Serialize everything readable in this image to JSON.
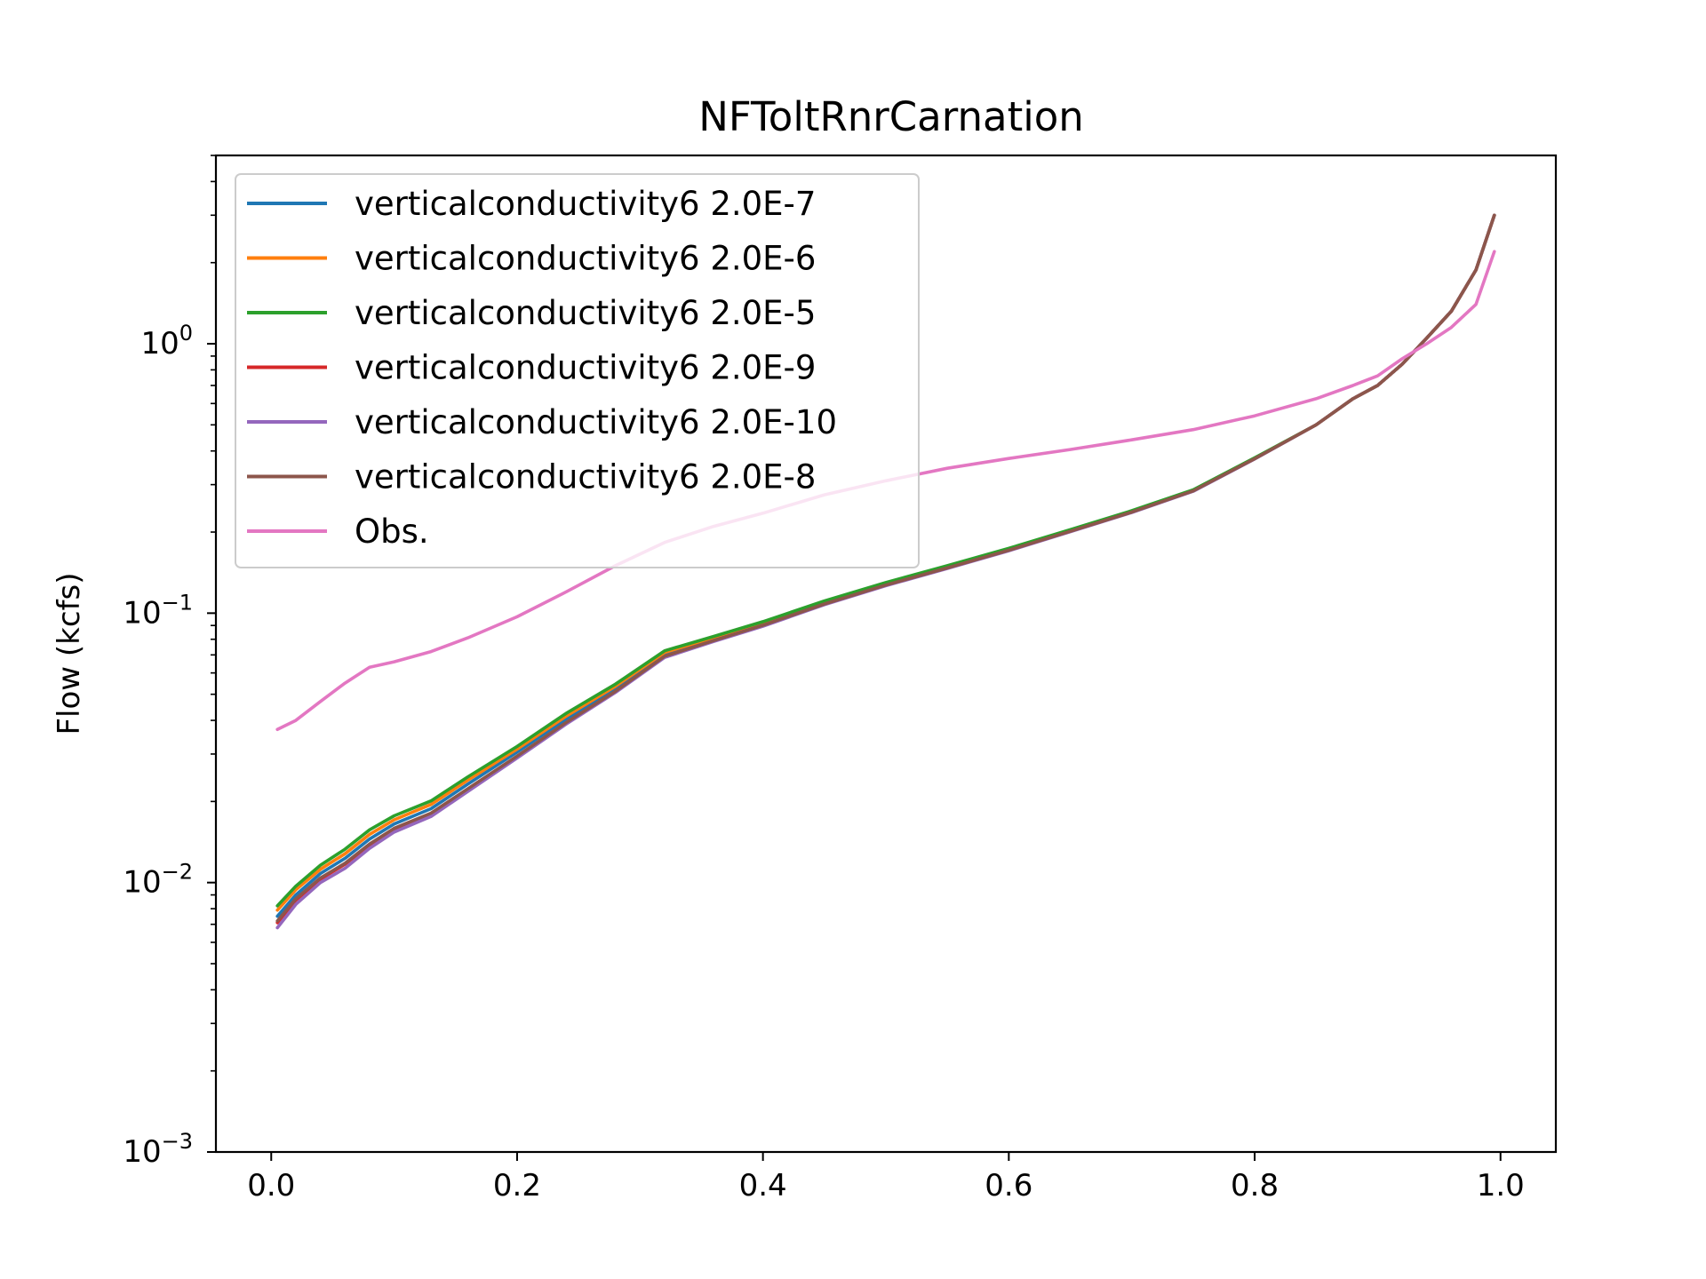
{
  "chart_data": {
    "type": "line",
    "title": "NFToltRnrCarnation",
    "xlabel": "",
    "ylabel": "Flow (kcfs)",
    "xlim": [
      -0.045,
      1.045
    ],
    "ylim": [
      0.001,
      5.0
    ],
    "yscale": "log",
    "grid": false,
    "legend_position": "top-left",
    "x_ticks": [
      0.0,
      0.2,
      0.4,
      0.6,
      0.8,
      1.0
    ],
    "x_tick_labels": [
      "0.0",
      "0.2",
      "0.4",
      "0.6",
      "0.8",
      "1.0"
    ],
    "y_ticks": [
      0.001,
      0.01,
      0.1,
      1.0
    ],
    "y_tick_labels": [
      {
        "base": "10",
        "exp": "−3"
      },
      {
        "base": "10",
        "exp": "−2"
      },
      {
        "base": "10",
        "exp": "−1"
      },
      {
        "base": "10",
        "exp": "0"
      }
    ],
    "series": [
      {
        "name": "verticalconductivity6 2.0E-7",
        "color": "#1f77b4",
        "x": [
          0.005,
          0.02,
          0.04,
          0.06,
          0.08,
          0.1,
          0.13,
          0.16,
          0.2,
          0.24,
          0.28,
          0.32,
          0.36,
          0.4,
          0.45,
          0.5,
          0.55,
          0.6,
          0.65,
          0.7,
          0.75,
          0.8,
          0.85,
          0.88,
          0.9,
          0.92,
          0.94,
          0.96,
          0.98,
          0.995
        ],
        "y": [
          0.0075,
          0.009,
          0.0108,
          0.0123,
          0.0145,
          0.0165,
          0.0188,
          0.0232,
          0.0305,
          0.0405,
          0.0525,
          0.0705,
          0.0805,
          0.0915,
          0.109,
          0.128,
          0.148,
          0.172,
          0.202,
          0.238,
          0.285,
          0.375,
          0.5,
          0.625,
          0.7,
          0.84,
          1.05,
          1.32,
          1.88,
          3.0
        ]
      },
      {
        "name": "verticalconductivity6 2.0E-6",
        "color": "#ff7f0e",
        "x": [
          0.005,
          0.02,
          0.04,
          0.06,
          0.08,
          0.1,
          0.13,
          0.16,
          0.2,
          0.24,
          0.28,
          0.32,
          0.36,
          0.4,
          0.45,
          0.5,
          0.55,
          0.6,
          0.65,
          0.7,
          0.75,
          0.8,
          0.85,
          0.88,
          0.9,
          0.92,
          0.94,
          0.96,
          0.98,
          0.995
        ],
        "y": [
          0.0079,
          0.0094,
          0.0112,
          0.0128,
          0.0151,
          0.0171,
          0.0195,
          0.024,
          0.0313,
          0.0415,
          0.0535,
          0.0715,
          0.0812,
          0.0922,
          0.11,
          0.129,
          0.149,
          0.173,
          0.203,
          0.239,
          0.286,
          0.376,
          0.5,
          0.625,
          0.7,
          0.84,
          1.05,
          1.32,
          1.88,
          3.0
        ]
      },
      {
        "name": "verticalconductivity6 2.0E-5",
        "color": "#2ca02c",
        "x": [
          0.005,
          0.02,
          0.04,
          0.06,
          0.08,
          0.1,
          0.13,
          0.16,
          0.2,
          0.24,
          0.28,
          0.32,
          0.36,
          0.4,
          0.45,
          0.5,
          0.55,
          0.6,
          0.65,
          0.7,
          0.75,
          0.8,
          0.85,
          0.88,
          0.9,
          0.92,
          0.94,
          0.96,
          0.98,
          0.995
        ],
        "y": [
          0.0082,
          0.0097,
          0.0116,
          0.0133,
          0.0157,
          0.0177,
          0.0201,
          0.0247,
          0.032,
          0.0425,
          0.0545,
          0.0725,
          0.082,
          0.093,
          0.111,
          0.13,
          0.15,
          0.174,
          0.204,
          0.24,
          0.287,
          0.377,
          0.5,
          0.625,
          0.7,
          0.84,
          1.05,
          1.32,
          1.88,
          3.0
        ]
      },
      {
        "name": "verticalconductivity6 2.0E-9",
        "color": "#d62728",
        "x": [
          0.005,
          0.02,
          0.04,
          0.06,
          0.08,
          0.1,
          0.13,
          0.16,
          0.2,
          0.24,
          0.28,
          0.32,
          0.36,
          0.4,
          0.45,
          0.5,
          0.55,
          0.6,
          0.65,
          0.7,
          0.75,
          0.8,
          0.85,
          0.88,
          0.9,
          0.92,
          0.94,
          0.96,
          0.98,
          0.995
        ],
        "y": [
          0.0071,
          0.0086,
          0.0103,
          0.0117,
          0.0138,
          0.0158,
          0.018,
          0.0222,
          0.0294,
          0.0392,
          0.0512,
          0.069,
          0.079,
          0.09,
          0.108,
          0.127,
          0.147,
          0.171,
          0.201,
          0.237,
          0.284,
          0.374,
          0.5,
          0.625,
          0.7,
          0.84,
          1.05,
          1.32,
          1.88,
          3.0
        ]
      },
      {
        "name": "verticalconductivity6 2.0E-10",
        "color": "#9467bd",
        "x": [
          0.005,
          0.02,
          0.04,
          0.06,
          0.08,
          0.1,
          0.13,
          0.16,
          0.2,
          0.24,
          0.28,
          0.32,
          0.36,
          0.4,
          0.45,
          0.5,
          0.55,
          0.6,
          0.65,
          0.7,
          0.75,
          0.8,
          0.85,
          0.88,
          0.9,
          0.92,
          0.94,
          0.96,
          0.98,
          0.995
        ],
        "y": [
          0.0068,
          0.0083,
          0.01,
          0.0113,
          0.0134,
          0.0154,
          0.0176,
          0.0218,
          0.029,
          0.0388,
          0.0508,
          0.0685,
          0.0785,
          0.0895,
          0.1075,
          0.1265,
          0.1465,
          0.1705,
          0.2005,
          0.2365,
          0.2835,
          0.3735,
          0.5,
          0.625,
          0.7,
          0.84,
          1.05,
          1.32,
          1.88,
          3.0
        ]
      },
      {
        "name": "verticalconductivity6 2.0E-8",
        "color": "#8c564b",
        "x": [
          0.005,
          0.02,
          0.04,
          0.06,
          0.08,
          0.1,
          0.13,
          0.16,
          0.2,
          0.24,
          0.28,
          0.32,
          0.36,
          0.4,
          0.45,
          0.5,
          0.55,
          0.6,
          0.65,
          0.7,
          0.75,
          0.8,
          0.85,
          0.88,
          0.9,
          0.92,
          0.94,
          0.96,
          0.98,
          0.995
        ],
        "y": [
          0.0072,
          0.0087,
          0.0104,
          0.0118,
          0.0139,
          0.0159,
          0.0181,
          0.0223,
          0.0295,
          0.0393,
          0.0513,
          0.0692,
          0.0792,
          0.0902,
          0.1082,
          0.1272,
          0.1472,
          0.1712,
          0.2012,
          0.2372,
          0.2842,
          0.3742,
          0.5,
          0.625,
          0.7,
          0.84,
          1.05,
          1.32,
          1.88,
          3.0
        ]
      },
      {
        "name": "Obs.",
        "color": "#e377c2",
        "x": [
          0.005,
          0.02,
          0.04,
          0.06,
          0.08,
          0.1,
          0.13,
          0.16,
          0.2,
          0.24,
          0.28,
          0.32,
          0.36,
          0.4,
          0.45,
          0.5,
          0.55,
          0.6,
          0.65,
          0.7,
          0.75,
          0.8,
          0.85,
          0.88,
          0.9,
          0.92,
          0.94,
          0.96,
          0.98,
          0.995
        ],
        "y": [
          0.037,
          0.04,
          0.047,
          0.055,
          0.063,
          0.066,
          0.072,
          0.081,
          0.097,
          0.12,
          0.15,
          0.183,
          0.21,
          0.235,
          0.275,
          0.31,
          0.345,
          0.375,
          0.405,
          0.44,
          0.48,
          0.54,
          0.625,
          0.7,
          0.76,
          0.88,
          1.0,
          1.15,
          1.4,
          2.2
        ]
      }
    ]
  }
}
